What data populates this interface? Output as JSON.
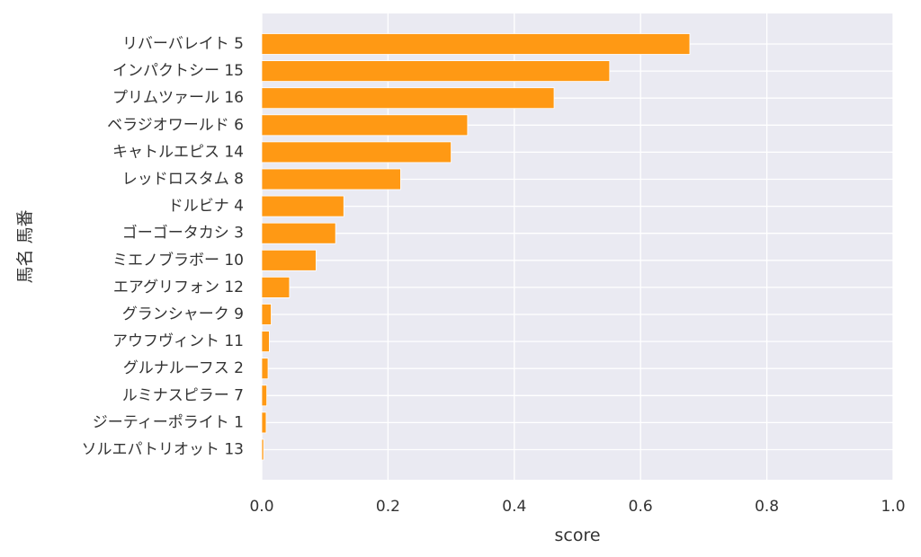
{
  "chart_data": {
    "type": "bar",
    "orientation": "horizontal",
    "categories": [
      "リバーバレイト 5",
      "インパクトシー 15",
      "プリムツァール 16",
      "ベラジオワールド 6",
      "キャトルエピス 14",
      "レッドロスタム 8",
      "ドルビナ 4",
      "ゴーゴータカシ 3",
      "ミエノブラボー 10",
      "エアグリフォン 12",
      "グランシャーク 9",
      "アウフヴィント 11",
      "グルナルーフス 2",
      "ルミナスピラー 7",
      "ジーティーポライト 1",
      "ソルエパトリオット 13"
    ],
    "values": [
      0.678,
      0.551,
      0.463,
      0.326,
      0.3,
      0.22,
      0.13,
      0.117,
      0.086,
      0.044,
      0.015,
      0.012,
      0.01,
      0.008,
      0.007,
      0.003
    ],
    "xlabel": "score",
    "ylabel": "馬名 馬番",
    "xlim": [
      0,
      1.0
    ],
    "xticks": [
      "0.0",
      "0.2",
      "0.4",
      "0.6",
      "0.8",
      "1.0"
    ],
    "grid": true,
    "bar_color": "#ff9914",
    "background_color": "#eaeaf2",
    "grid_color": "#ffffff"
  }
}
